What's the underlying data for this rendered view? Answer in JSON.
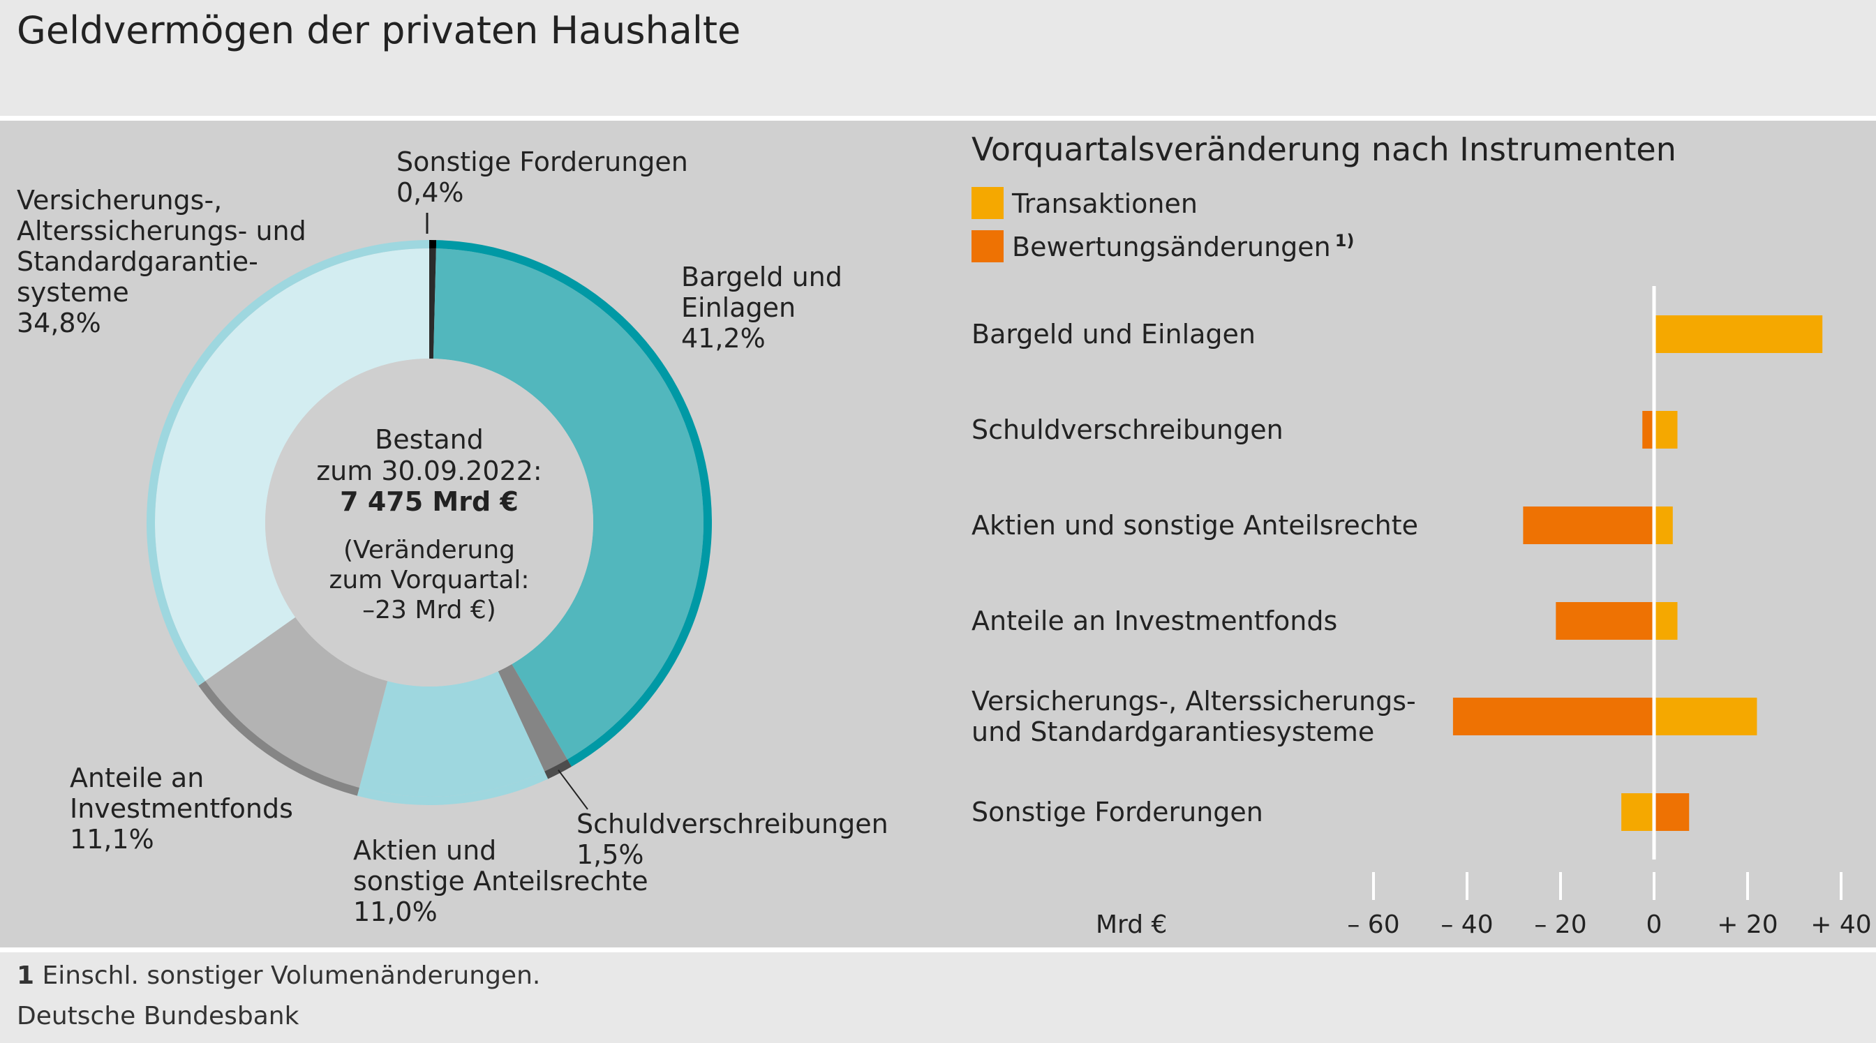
{
  "title": "Geldvermögen der privaten Haushalte",
  "footnote": {
    "marker": "1",
    "text": "Einschl. sonstiger Volumenänderungen."
  },
  "source": "Deutsche Bundesbank",
  "colors": {
    "bargeld_fill": "#52b7bd",
    "bargeld_ring": "#0099a5",
    "schuld_fill": "#858585",
    "schuld_ring": "#4d4d4d",
    "aktien_fill": "#9ed7df",
    "aktien_ring": "#9ed7df",
    "investment_fill": "#b3b3b3",
    "investment_ring": "#858585",
    "versicherung_fill": "#d3edf1",
    "versicherung_ring": "#9ed7df",
    "sonstige_fill": "#2b2b2b",
    "center": "#cfcfcf",
    "transaktionen": "#f5a800",
    "bewertung": "#ee7203"
  },
  "chart_data": [
    {
      "type": "pie",
      "donut": true,
      "title": "",
      "center_label": {
        "line1": "Bestand",
        "line2": "zum 30.09.2022:",
        "line3": "7 475 Mrd €",
        "line4": "(Veränderung",
        "line5": "zum Vorquartal:",
        "line6": "–23 Mrd €)"
      },
      "slices": [
        {
          "key": "sonstige",
          "label_lines": [
            "Sonstige Forderungen"
          ],
          "percent_label": "0,4%",
          "value": 0.4
        },
        {
          "key": "bargeld",
          "label_lines": [
            "Bargeld und",
            "Einlagen"
          ],
          "percent_label": "41,2%",
          "value": 41.2
        },
        {
          "key": "schuld",
          "label_lines": [
            "Schuldverschreibungen"
          ],
          "percent_label": "1,5%",
          "value": 1.5
        },
        {
          "key": "aktien",
          "label_lines": [
            "Aktien und",
            "sonstige Anteilsrechte"
          ],
          "percent_label": "11,0%",
          "value": 11.0
        },
        {
          "key": "investment",
          "label_lines": [
            "Anteile an",
            "Investmentfonds"
          ],
          "percent_label": "11,1%",
          "value": 11.1
        },
        {
          "key": "versicherung",
          "label_lines": [
            "Versicherungs-,",
            "Alterssicherungs- und",
            "Standardgarantie-",
            "systeme"
          ],
          "percent_label": "34,8%",
          "value": 34.8
        }
      ]
    },
    {
      "type": "bar",
      "orientation": "horizontal",
      "stacked": true,
      "title": "Vorquartalsveränderung nach Instrumenten",
      "xlabel": "Mrd €",
      "xlim": [
        -60,
        40
      ],
      "xticks": [
        -60,
        -40,
        -20,
        0,
        20,
        40
      ],
      "xtick_labels": [
        "– 60",
        "– 40",
        "– 20",
        "0",
        "+ 20",
        "+ 40"
      ],
      "categories": [
        [
          "Bargeld und Einlagen"
        ],
        [
          "Schuldverschreibungen"
        ],
        [
          "Aktien und sonstige Anteilsrechte"
        ],
        [
          "Anteile an Investmentfonds"
        ],
        [
          "Versicherungs-, Alterssicherungs-",
          "und Standardgarantiesysteme"
        ],
        [
          "Sonstige Forderungen"
        ]
      ],
      "series": [
        {
          "name": "Transaktionen",
          "values": [
            36,
            5,
            4,
            5,
            22,
            -7
          ]
        },
        {
          "name": "Bewertungsänderungen",
          "name_superscript": "1)",
          "values": [
            0,
            -2.5,
            -28,
            -21,
            -43,
            7.5
          ]
        }
      ]
    }
  ]
}
